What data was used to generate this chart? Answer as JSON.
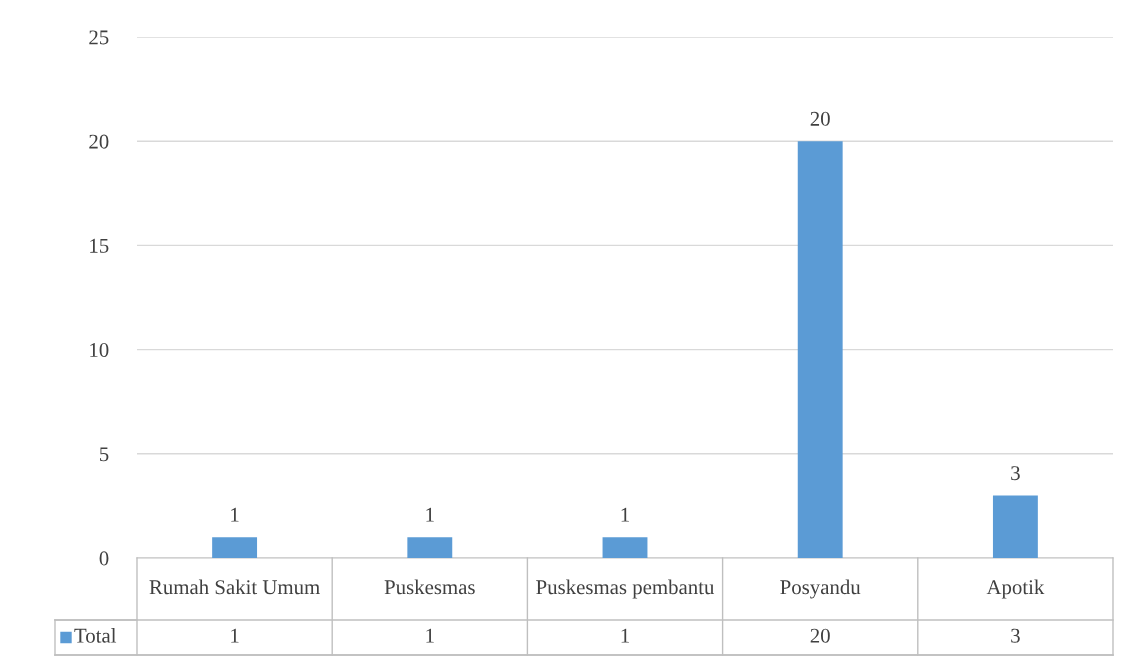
{
  "chart_data": {
    "type": "bar",
    "categories": [
      "Rumah Sakit Umum",
      "Puskesmas",
      "Puskesmas pembantu",
      "Posyandu",
      "Apotik"
    ],
    "series": [
      {
        "name": "Total",
        "color": "#5b9bd5",
        "values": [
          1,
          1,
          1,
          20,
          3
        ]
      }
    ],
    "ylim": [
      0,
      25
    ],
    "yticks": [
      0,
      5,
      10,
      15,
      20,
      25
    ],
    "grid": "y",
    "legend": "bottom",
    "data_labels": true,
    "annotations": [
      "1",
      "1",
      "1",
      "20",
      "3"
    ]
  }
}
